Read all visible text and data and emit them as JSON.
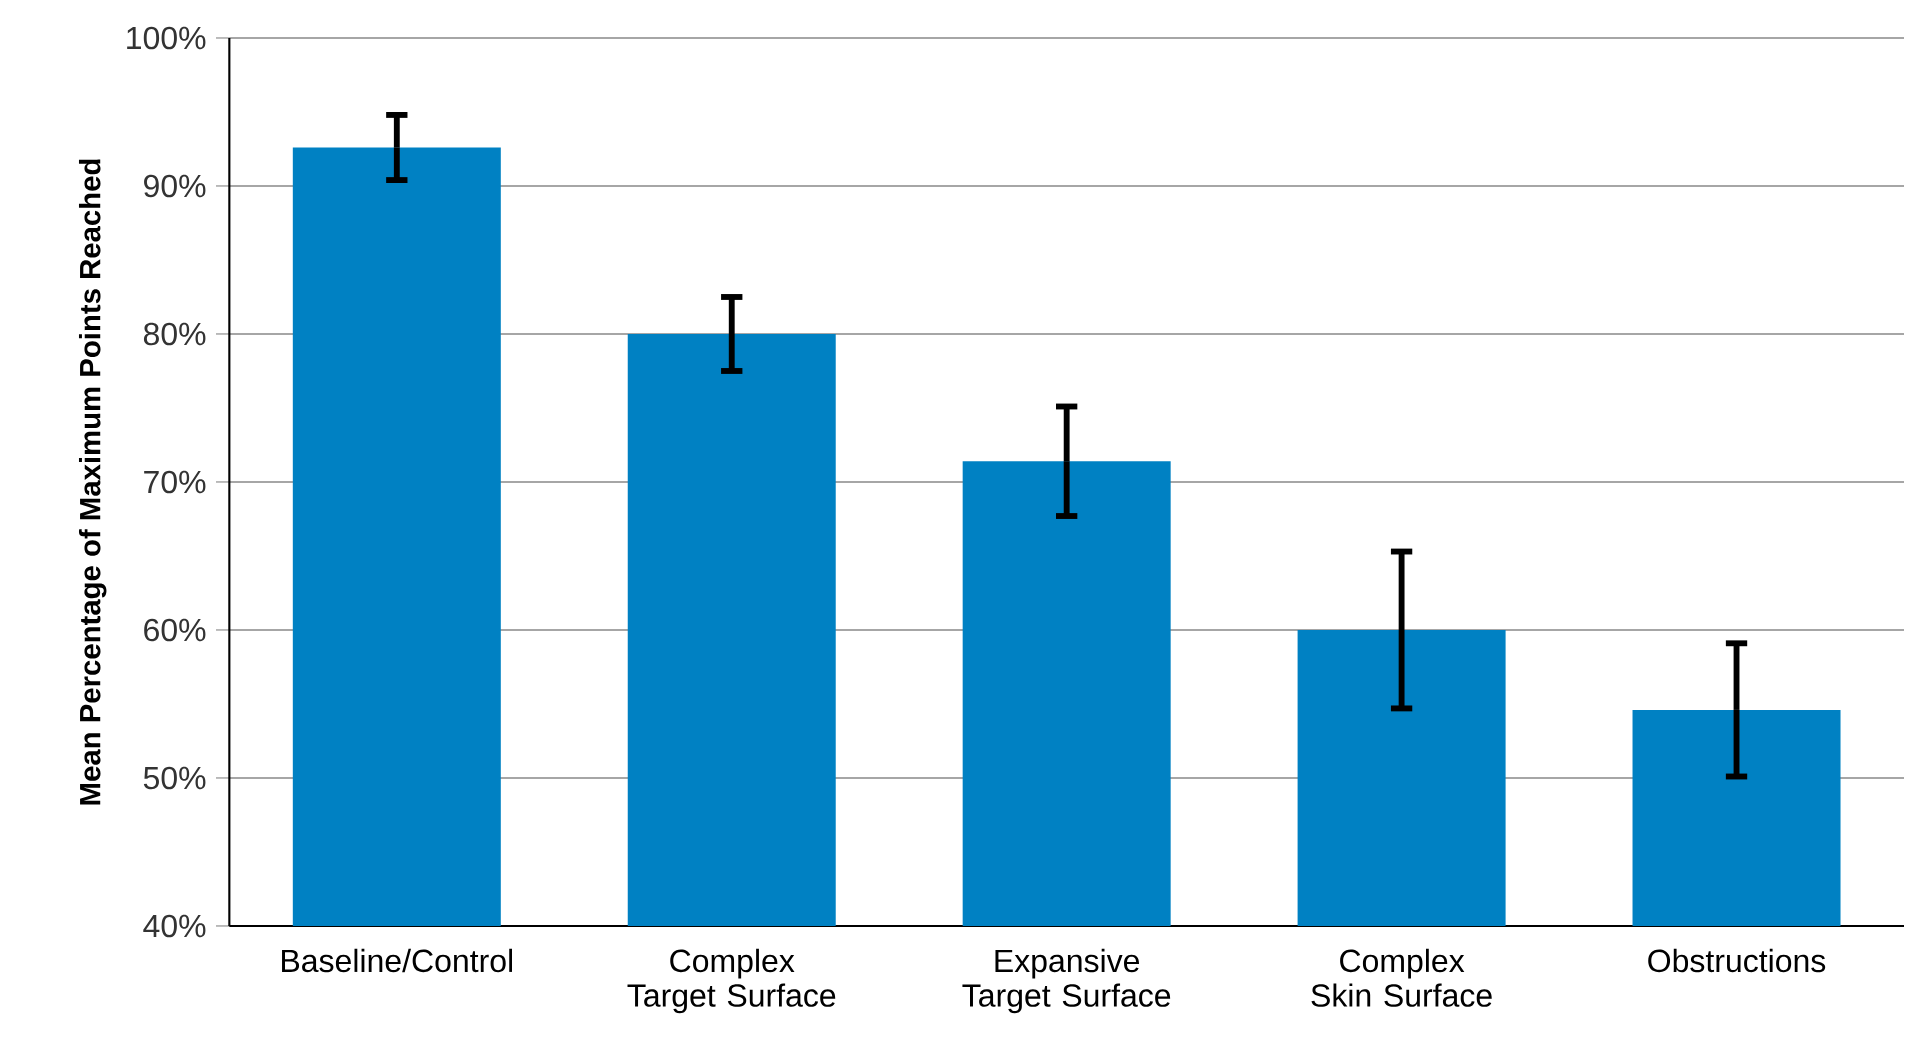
{
  "chart_data": {
    "type": "bar",
    "ylabel": "Mean Percentage of Maximum Points Reached",
    "categories": [
      "Baseline/Control",
      "Complex Target Surface",
      "Expansive Target Surface",
      "Complex Skin Surface",
      "Obstructions"
    ],
    "values": [
      92.6,
      80.0,
      71.4,
      60.0,
      54.6
    ],
    "errors": [
      2.2,
      2.5,
      3.7,
      5.3,
      4.5
    ],
    "color": "#0081c3",
    "ylim": [
      40,
      100
    ],
    "yticks": [
      {
        "value": 40,
        "label": "40%"
      },
      {
        "value": 50,
        "label": "50%"
      },
      {
        "value": 60,
        "label": "60%"
      },
      {
        "value": 70,
        "label": "70%"
      },
      {
        "value": 80,
        "label": "80%"
      },
      {
        "value": 90,
        "label": "90%"
      },
      {
        "value": 100,
        "label": "100%"
      }
    ],
    "grid": "y"
  }
}
